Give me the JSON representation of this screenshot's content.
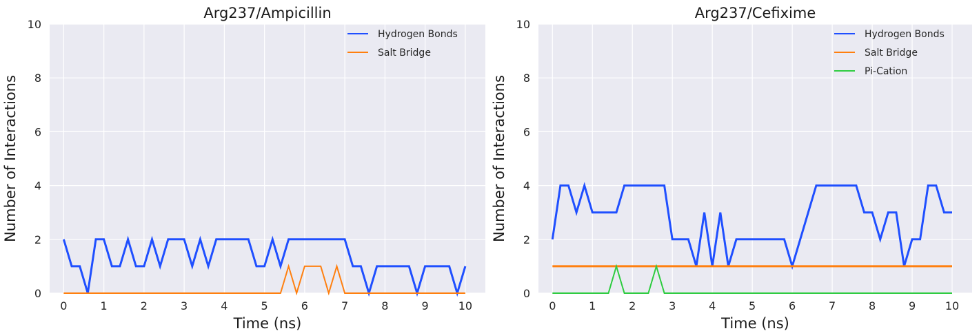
{
  "chart_data": [
    {
      "type": "line",
      "title": "Arg237/Ampicillin",
      "xlabel": "Time (ns)",
      "ylabel": "Number of Interactions",
      "xlim": [
        -0.35,
        10.5
      ],
      "ylim": [
        0,
        10
      ],
      "xticks": [
        0,
        1,
        2,
        3,
        4,
        5,
        6,
        7,
        8,
        9,
        10
      ],
      "yticks": [
        0,
        2,
        4,
        6,
        8,
        10
      ],
      "grid": true,
      "legend": "top-right",
      "series": [
        {
          "name": "Hydrogen Bonds",
          "color": "#1f4fff",
          "linewidth": "thick",
          "x": [
            0,
            0.2,
            0.4,
            0.6,
            0.8,
            1.0,
            1.2,
            1.4,
            1.6,
            1.8,
            2.0,
            2.2,
            2.4,
            2.6,
            2.8,
            3.0,
            3.2,
            3.4,
            3.6,
            3.8,
            4.0,
            4.2,
            4.4,
            4.6,
            4.8,
            5.0,
            5.2,
            5.4,
            5.6,
            5.8,
            6.0,
            6.2,
            6.4,
            6.6,
            6.8,
            7.0,
            7.2,
            7.4,
            7.6,
            7.8,
            8.0,
            8.2,
            8.4,
            8.6,
            8.8,
            9.0,
            9.2,
            9.4,
            9.6,
            9.8,
            10.0
          ],
          "y": [
            2,
            1,
            1,
            0,
            2,
            2,
            1,
            1,
            2,
            1,
            1,
            2,
            1,
            2,
            2,
            2,
            1,
            2,
            1,
            2,
            2,
            2,
            2,
            2,
            1,
            1,
            2,
            1,
            2,
            2,
            2,
            2,
            2,
            2,
            2,
            2,
            1,
            1,
            0,
            1,
            1,
            1,
            1,
            1,
            0,
            1,
            1,
            1,
            1,
            0,
            1
          ]
        },
        {
          "name": "Salt Bridge",
          "color": "#ff7f0e",
          "linewidth": "thin",
          "x": [
            0,
            5.4,
            5.6,
            5.8,
            6.0,
            6.2,
            6.4,
            6.6,
            6.8,
            7.0,
            10.0
          ],
          "y": [
            0,
            0,
            1,
            0,
            1,
            1,
            1,
            0,
            1,
            0,
            0
          ]
        }
      ]
    },
    {
      "type": "line",
      "title": "Arg237/Cefixime",
      "xlabel": "Time (ns)",
      "ylabel": "Number of Interactions",
      "xlim": [
        -0.35,
        10.5
      ],
      "ylim": [
        0,
        10
      ],
      "xticks": [
        0,
        1,
        2,
        3,
        4,
        5,
        6,
        7,
        8,
        9,
        10
      ],
      "yticks": [
        0,
        2,
        4,
        6,
        8,
        10
      ],
      "grid": true,
      "legend": "top-right",
      "series": [
        {
          "name": "Hydrogen Bonds",
          "color": "#1f4fff",
          "linewidth": "thick",
          "x": [
            0,
            0.2,
            0.4,
            0.6,
            0.8,
            1.0,
            1.2,
            1.4,
            1.6,
            1.8,
            2.0,
            2.2,
            2.4,
            2.6,
            2.8,
            3.0,
            3.2,
            3.4,
            3.6,
            3.8,
            4.0,
            4.2,
            4.4,
            4.6,
            4.8,
            5.0,
            5.2,
            5.4,
            5.6,
            5.8,
            6.0,
            6.2,
            6.4,
            6.6,
            6.8,
            7.0,
            7.2,
            7.4,
            7.6,
            7.8,
            8.0,
            8.2,
            8.4,
            8.6,
            8.8,
            9.0,
            9.2,
            9.4,
            9.6,
            9.8,
            10.0
          ],
          "y": [
            2,
            4,
            4,
            3,
            4,
            3,
            3,
            3,
            3,
            4,
            4,
            4,
            4,
            4,
            4,
            2,
            2,
            2,
            1,
            3,
            1,
            3,
            1,
            2,
            2,
            2,
            2,
            2,
            2,
            2,
            1,
            2,
            3,
            4,
            4,
            4,
            4,
            4,
            4,
            3,
            3,
            2,
            3,
            3,
            1,
            2,
            2,
            4,
            4,
            3,
            3
          ]
        },
        {
          "name": "Salt Bridge",
          "color": "#ff7f0e",
          "linewidth": "thick",
          "x": [
            0,
            10.0
          ],
          "y": [
            1,
            1
          ]
        },
        {
          "name": "Pi-Cation",
          "color": "#2ecc40",
          "linewidth": "thin",
          "x": [
            0,
            1.4,
            1.6,
            1.8,
            2.4,
            2.6,
            2.8,
            10.0
          ],
          "y": [
            0,
            0,
            1,
            0,
            0,
            1,
            0,
            0
          ]
        }
      ]
    }
  ]
}
